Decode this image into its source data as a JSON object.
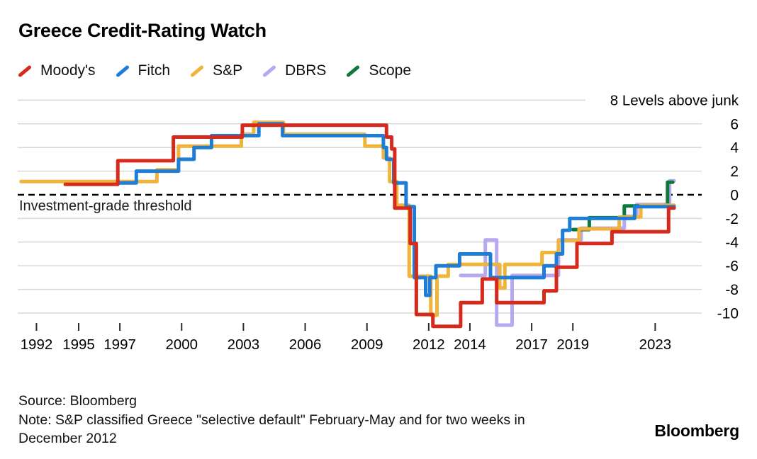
{
  "title": "Greece Credit-Rating Watch",
  "legend": {
    "items": [
      {
        "label": "Moody's",
        "color": "#d62b1c"
      },
      {
        "label": "Fitch",
        "color": "#1e7ed7"
      },
      {
        "label": "S&P",
        "color": "#f0b43a"
      },
      {
        "label": "DBRS",
        "color": "#b7a8f0"
      },
      {
        "label": "Scope",
        "color": "#0d7a3c"
      }
    ]
  },
  "chart_data": {
    "type": "line",
    "style": "step-after",
    "title": "Greece Credit-Rating Watch",
    "ylabel": "Levels above junk",
    "y_axis_top_label": "8 Levels above junk",
    "threshold_label": "Investment-grade threshold",
    "threshold_value": 0,
    "y_ticks": [
      6,
      4,
      2,
      0,
      -2,
      -4,
      -6,
      -8,
      -10
    ],
    "ylim": [
      -11.5,
      8
    ],
    "xlim": [
      1992,
      2024.5
    ],
    "grid": true,
    "legend_position": "top-left",
    "x_ticks": [
      {
        "label": "1992",
        "year": 1992
      },
      {
        "label": "1995",
        "year": 1995
      },
      {
        "label": "1997",
        "year": 1997
      },
      {
        "label": "2000",
        "year": 2000
      },
      {
        "label": "2003",
        "year": 2003
      },
      {
        "label": "2006",
        "year": 2006
      },
      {
        "label": "2009",
        "year": 2009
      },
      {
        "label": "2012",
        "year": 2012
      },
      {
        "label": "2014",
        "year": 2014
      },
      {
        "label": "2017",
        "year": 2017
      },
      {
        "label": "2019",
        "year": 2019
      },
      {
        "label": "2023",
        "year": 2023
      }
    ],
    "series": [
      {
        "name": "Moody's",
        "color": "#d62b1c",
        "end_year": 2023.92,
        "points": [
          [
            1994.35,
            1
          ],
          [
            1996.9,
            3
          ],
          [
            1999.6,
            5
          ],
          [
            2002.95,
            6
          ],
          [
            2009.95,
            5
          ],
          [
            2010.2,
            4
          ],
          [
            2010.35,
            -1
          ],
          [
            2011.1,
            -4
          ],
          [
            2011.4,
            -10
          ],
          [
            2012.2,
            -11
          ],
          [
            2013.55,
            -9
          ],
          [
            2014.6,
            -7
          ],
          [
            2015.3,
            -9
          ],
          [
            2017.6,
            -8
          ],
          [
            2018.2,
            -6
          ],
          [
            2019.2,
            -4
          ],
          [
            2020.9,
            -3
          ],
          [
            2023.65,
            -1
          ]
        ]
      },
      {
        "name": "Fitch",
        "color": "#1e7ed7",
        "end_year": 2023.92,
        "points": [
          [
            1996.9,
            1
          ],
          [
            1997.8,
            2
          ],
          [
            1999.85,
            3
          ],
          [
            2000.6,
            4
          ],
          [
            2001.45,
            5
          ],
          [
            2003.75,
            6
          ],
          [
            2004.9,
            5
          ],
          [
            2009.8,
            4
          ],
          [
            2009.95,
            3
          ],
          [
            2010.3,
            1
          ],
          [
            2010.9,
            -1
          ],
          [
            2011.3,
            -7
          ],
          [
            2011.85,
            -8.5
          ],
          [
            2012.05,
            -7
          ],
          [
            2012.35,
            -6
          ],
          [
            2013.5,
            -5
          ],
          [
            2015.0,
            -7
          ],
          [
            2017.6,
            -6
          ],
          [
            2018.2,
            -5
          ],
          [
            2018.5,
            -3
          ],
          [
            2018.85,
            -2
          ],
          [
            2022.0,
            -1
          ]
        ]
      },
      {
        "name": "S&P",
        "color": "#f0b43a",
        "end_year": 2023.92,
        "points": [
          [
            1992.2,
            1
          ],
          [
            1998.8,
            2
          ],
          [
            1999.85,
            4
          ],
          [
            2002.9,
            5
          ],
          [
            2003.5,
            6
          ],
          [
            2004.95,
            5
          ],
          [
            2008.9,
            4
          ],
          [
            2009.8,
            3
          ],
          [
            2010.1,
            1
          ],
          [
            2010.45,
            -1
          ],
          [
            2011.05,
            -7
          ],
          [
            2012.1,
            -10.3
          ],
          [
            2012.4,
            -7
          ],
          [
            2012.95,
            -6
          ],
          [
            2015.45,
            -8
          ],
          [
            2015.7,
            -6
          ],
          [
            2017.5,
            -5
          ],
          [
            2018.3,
            -4
          ],
          [
            2019.3,
            -3
          ],
          [
            2021.25,
            -2
          ],
          [
            2022.3,
            -1
          ]
        ]
      },
      {
        "name": "DBRS",
        "color": "#b7a8f0",
        "end_year": 2023.92,
        "points": [
          [
            2013.55,
            -7
          ],
          [
            2014.75,
            -4
          ],
          [
            2015.3,
            -11.2
          ],
          [
            2016.05,
            -7
          ],
          [
            2018.3,
            -4
          ],
          [
            2019.4,
            -3
          ],
          [
            2021.5,
            -2
          ],
          [
            2022.1,
            -1
          ],
          [
            2023.7,
            1
          ]
        ]
      },
      {
        "name": "Scope",
        "color": "#0d7a3c",
        "end_year": 2023.85,
        "points": [
          [
            2019.0,
            -3
          ],
          [
            2019.8,
            -2
          ],
          [
            2021.5,
            -1
          ],
          [
            2023.6,
            1
          ]
        ]
      }
    ]
  },
  "footer": {
    "source": "Source: Bloomberg",
    "note_line1": "Note: S&P classified Greece \"selective default\" February-May and for two weeks in",
    "note_line2": "December 2012",
    "brand": "Bloomberg"
  }
}
